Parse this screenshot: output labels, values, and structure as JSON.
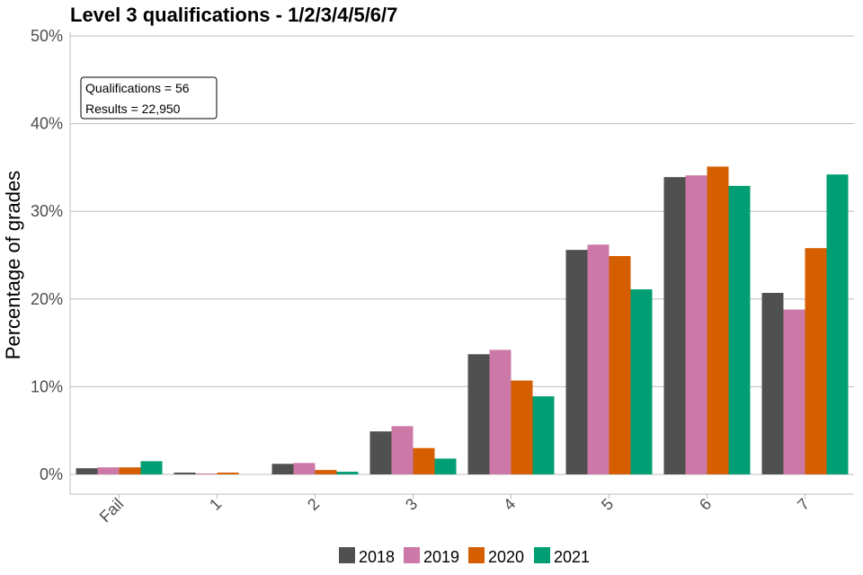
{
  "chart_data": {
    "type": "bar",
    "title": "Level 3 qualifications  - 1/2/3/4/5/6/7",
    "xlabel": "",
    "ylabel": "Percentage of grades",
    "categories": [
      "Fail",
      "1",
      "2",
      "3",
      "4",
      "5",
      "6",
      "7"
    ],
    "ylim": [
      0,
      50
    ],
    "yticks": [
      0,
      10,
      20,
      30,
      40,
      50
    ],
    "ytick_labels": [
      "0%",
      "10%",
      "20%",
      "30%",
      "40%",
      "50%"
    ],
    "grid": "horizontal major",
    "legend_position": "bottom",
    "series": [
      {
        "name": "2018",
        "color": "#505050",
        "values": [
          0.7,
          0.2,
          1.2,
          4.9,
          13.7,
          25.6,
          33.9,
          20.7
        ]
      },
      {
        "name": "2019",
        "color": "#cc79a7",
        "values": [
          0.8,
          0.1,
          1.3,
          5.5,
          14.2,
          26.2,
          34.1,
          18.8
        ]
      },
      {
        "name": "2020",
        "color": "#d55e00",
        "values": [
          0.8,
          0.2,
          0.5,
          3.0,
          10.7,
          24.9,
          35.1,
          25.8
        ]
      },
      {
        "name": "2021",
        "color": "#009e73",
        "values": [
          1.5,
          0.0,
          0.3,
          1.8,
          8.9,
          21.1,
          32.9,
          34.2
        ]
      }
    ],
    "annotation": {
      "lines": [
        "Qualifications = 56",
        "Results = 22,950"
      ]
    }
  }
}
